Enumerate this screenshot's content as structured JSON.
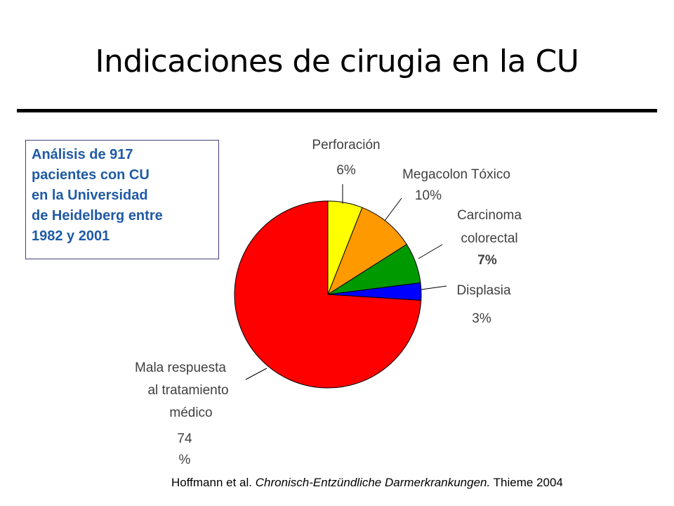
{
  "slide": {
    "title": "Indicaciones de cirugia en la CU"
  },
  "info_box": {
    "lines": [
      "Análisis de 917",
      "pacientes con CU",
      "en la Universidad",
      "de Heidelberg entre",
      "1982 y 2001"
    ]
  },
  "chart_data": {
    "type": "pie",
    "slices": [
      {
        "label_lines": [
          "Perforación"
        ],
        "value_text": "6%",
        "value": 6,
        "color": "#ffff00"
      },
      {
        "label_lines": [
          "Megacolon Tóxico"
        ],
        "value_text": "10%",
        "value": 10,
        "color": "#ff9900"
      },
      {
        "label_lines": [
          "Carcinoma",
          "colorectal"
        ],
        "value_text": "7%",
        "value": 7,
        "color": "#009900"
      },
      {
        "label_lines": [
          "Displasia"
        ],
        "value_text": "3%",
        "value": 3,
        "color": "#0000ff"
      },
      {
        "label_lines": [
          "Mala respuesta",
          "al tratamiento",
          "médico"
        ],
        "value_text_lines": [
          "74",
          "%"
        ],
        "value": 74,
        "color": "#ff0000"
      }
    ],
    "start": "12 o'clock",
    "direction": "clockwise",
    "title": ""
  },
  "citation": {
    "authors": "Hoffmann et al.",
    "work": "Chronisch-Entzündliche Darmerkrankungen.",
    "publisher": "Thieme 2004"
  }
}
